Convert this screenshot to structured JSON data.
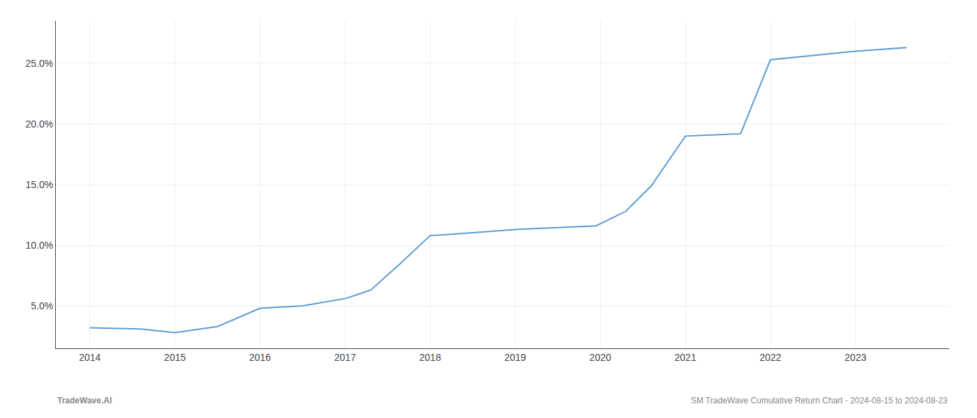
{
  "chart_data": {
    "type": "line",
    "x": [
      2014.0,
      2014.6,
      2015.0,
      2015.5,
      2016.0,
      2016.5,
      2017.0,
      2017.3,
      2017.65,
      2018.0,
      2018.25,
      2018.6,
      2019.0,
      2019.3,
      2019.7,
      2019.95,
      2020.3,
      2020.6,
      2021.0,
      2021.3,
      2021.65,
      2022.0,
      2022.3,
      2022.6,
      2023.0,
      2023.6
    ],
    "values": [
      3.2,
      3.1,
      2.8,
      3.3,
      4.8,
      5.0,
      5.6,
      6.3,
      8.5,
      10.8,
      10.9,
      11.1,
      11.3,
      11.4,
      11.5,
      11.6,
      12.8,
      14.9,
      19.0,
      19.1,
      19.2,
      25.3,
      25.5,
      25.7,
      26.0,
      26.3
    ],
    "color": "#5b9bd5",
    "xlim": [
      2013.6,
      2024.1
    ],
    "xticks": [
      2014,
      2015,
      2016,
      2017,
      2018,
      2019,
      2020,
      2021,
      2022,
      2023
    ],
    "ylim": [
      1.5,
      28.5
    ],
    "yticks": [
      {
        "value": 5.0,
        "label": "5.0%"
      },
      {
        "value": 10.0,
        "label": "10.0%"
      },
      {
        "value": 15.0,
        "label": "15.0%"
      },
      {
        "value": 20.0,
        "label": "20.0%"
      },
      {
        "value": 25.0,
        "label": "25.0%"
      }
    ],
    "grid": true,
    "annotations": [
      "TradeWave.AI",
      "SM TradeWave Cumulative Return Chart - 2024-08-15 to 2024-08-23"
    ]
  }
}
